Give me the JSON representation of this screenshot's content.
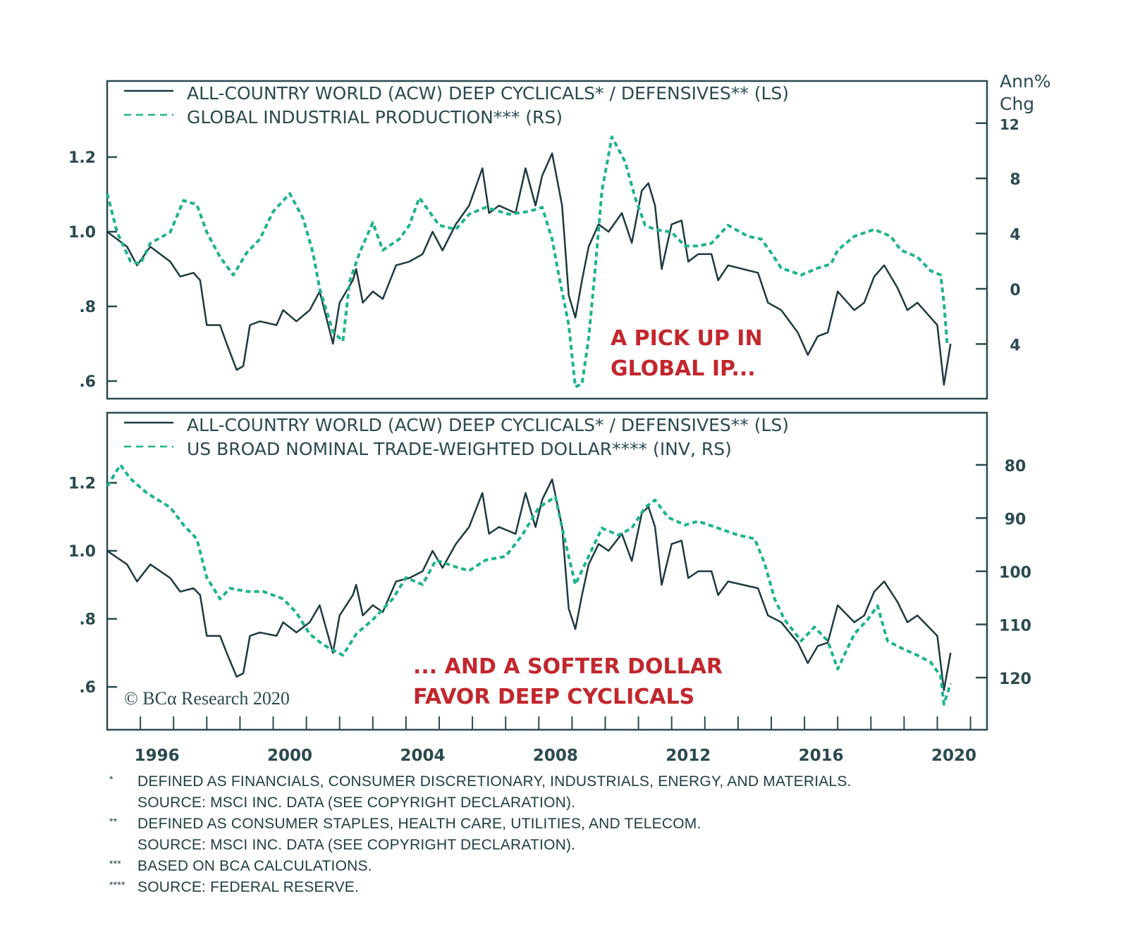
{
  "colors": {
    "ratio": "#1d3a3f",
    "green": "#1db38c",
    "annotation": "#c1272d",
    "axis": "#2a4a4f"
  },
  "copyright": "© BCα Research 2020",
  "chart_data": [
    {
      "type": "line",
      "legend": [
        "ALL-COUNTRY WORLD (ACW) DEEP CYCLICALS* / DEFENSIVES** (LS)",
        "GLOBAL INDUSTRIAL PRODUCTION*** (RS)"
      ],
      "legend_placement": "top-left",
      "right_axis_title": [
        "Ann%",
        "Chg"
      ],
      "annotation": [
        "A PICK UP IN",
        "GLOBAL IP..."
      ],
      "left_ticks": [
        {
          "v": 1.2,
          "label": "1.2"
        },
        {
          "v": 1.0,
          "label": "1.0"
        },
        {
          "v": 0.8,
          "label": ".8"
        },
        {
          "v": 0.6,
          "label": ".6"
        }
      ],
      "right_ticks": [
        {
          "v": 12,
          "label": "12"
        },
        {
          "v": 8,
          "label": "8"
        },
        {
          "v": 4,
          "label": "4"
        },
        {
          "v": 0,
          "label": "0"
        },
        {
          "v": -4,
          "label": "4"
        }
      ],
      "left_range": [
        0.55,
        1.4
      ],
      "right_range": [
        -8,
        15
      ],
      "series": [
        {
          "axis": "left",
          "style": "solid",
          "color": "#1d3a3f",
          "points": [
            [
              1995.0,
              1.0
            ],
            [
              1995.6,
              0.96
            ],
            [
              1995.9,
              0.91
            ],
            [
              1996.3,
              0.96
            ],
            [
              1996.9,
              0.92
            ],
            [
              1997.2,
              0.88
            ],
            [
              1997.6,
              0.89
            ],
            [
              1997.8,
              0.87
            ],
            [
              1998.0,
              0.75
            ],
            [
              1998.4,
              0.75
            ],
            [
              1998.6,
              0.7
            ],
            [
              1998.9,
              0.63
            ],
            [
              1999.1,
              0.64
            ],
            [
              1999.3,
              0.75
            ],
            [
              1999.6,
              0.76
            ],
            [
              2000.1,
              0.75
            ],
            [
              2000.3,
              0.79
            ],
            [
              2000.7,
              0.76
            ],
            [
              2001.1,
              0.79
            ],
            [
              2001.4,
              0.84
            ],
            [
              2001.8,
              0.7
            ],
            [
              2002.0,
              0.81
            ],
            [
              2002.4,
              0.87
            ],
            [
              2002.5,
              0.9
            ],
            [
              2002.7,
              0.81
            ],
            [
              2003.0,
              0.84
            ],
            [
              2003.3,
              0.82
            ],
            [
              2003.7,
              0.91
            ],
            [
              2004.1,
              0.92
            ],
            [
              2004.5,
              0.94
            ],
            [
              2004.8,
              1.0
            ],
            [
              2005.1,
              0.95
            ],
            [
              2005.5,
              1.02
            ],
            [
              2005.9,
              1.07
            ],
            [
              2006.3,
              1.17
            ],
            [
              2006.5,
              1.05
            ],
            [
              2006.8,
              1.07
            ],
            [
              2007.3,
              1.05
            ],
            [
              2007.6,
              1.17
            ],
            [
              2007.9,
              1.07
            ],
            [
              2008.1,
              1.15
            ],
            [
              2008.4,
              1.21
            ],
            [
              2008.7,
              1.07
            ],
            [
              2008.9,
              0.83
            ],
            [
              2009.1,
              0.77
            ],
            [
              2009.3,
              0.87
            ],
            [
              2009.5,
              0.96
            ],
            [
              2009.8,
              1.02
            ],
            [
              2010.1,
              1.0
            ],
            [
              2010.5,
              1.05
            ],
            [
              2010.8,
              0.97
            ],
            [
              2011.1,
              1.11
            ],
            [
              2011.3,
              1.13
            ],
            [
              2011.5,
              1.07
            ],
            [
              2011.7,
              0.9
            ],
            [
              2012.0,
              1.02
            ],
            [
              2012.3,
              1.03
            ],
            [
              2012.5,
              0.92
            ],
            [
              2012.8,
              0.94
            ],
            [
              2013.2,
              0.94
            ],
            [
              2013.4,
              0.87
            ],
            [
              2013.7,
              0.91
            ],
            [
              2014.6,
              0.89
            ],
            [
              2014.9,
              0.81
            ],
            [
              2015.3,
              0.79
            ],
            [
              2015.8,
              0.73
            ],
            [
              2016.1,
              0.67
            ],
            [
              2016.4,
              0.72
            ],
            [
              2016.7,
              0.73
            ],
            [
              2017.0,
              0.84
            ],
            [
              2017.5,
              0.79
            ],
            [
              2017.8,
              0.81
            ],
            [
              2018.1,
              0.88
            ],
            [
              2018.4,
              0.91
            ],
            [
              2018.8,
              0.85
            ],
            [
              2019.1,
              0.79
            ],
            [
              2019.4,
              0.81
            ],
            [
              2019.8,
              0.77
            ],
            [
              2020.0,
              0.75
            ],
            [
              2020.2,
              0.59
            ],
            [
              2020.4,
              0.7
            ]
          ]
        },
        {
          "axis": "right",
          "style": "dashed",
          "color": "#1db38c",
          "points": [
            [
              1995.0,
              6.9
            ],
            [
              1995.3,
              4.1
            ],
            [
              1995.7,
              2.0
            ],
            [
              1996.0,
              1.8
            ],
            [
              1996.3,
              3.3
            ],
            [
              1996.9,
              4.1
            ],
            [
              1997.3,
              6.4
            ],
            [
              1997.7,
              6.1
            ],
            [
              1998.0,
              4.1
            ],
            [
              1998.4,
              2.3
            ],
            [
              1998.8,
              1.0
            ],
            [
              1999.2,
              2.6
            ],
            [
              1999.6,
              3.6
            ],
            [
              2000.0,
              5.6
            ],
            [
              2000.5,
              6.9
            ],
            [
              2000.9,
              5.1
            ],
            [
              2001.2,
              2.6
            ],
            [
              2001.4,
              0
            ],
            [
              2001.8,
              -3.1
            ],
            [
              2002.1,
              -3.8
            ],
            [
              2002.3,
              0.5
            ],
            [
              2002.6,
              2.6
            ],
            [
              2003.0,
              4.8
            ],
            [
              2003.3,
              2.8
            ],
            [
              2003.8,
              3.6
            ],
            [
              2004.1,
              4.6
            ],
            [
              2004.4,
              6.6
            ],
            [
              2004.7,
              5.6
            ],
            [
              2005.0,
              4.6
            ],
            [
              2005.5,
              4.3
            ],
            [
              2005.9,
              5.4
            ],
            [
              2006.4,
              5.9
            ],
            [
              2007.1,
              5.4
            ],
            [
              2007.7,
              5.6
            ],
            [
              2008.1,
              5.9
            ],
            [
              2008.4,
              3.6
            ],
            [
              2008.6,
              1.0
            ],
            [
              2008.9,
              -2.6
            ],
            [
              2009.1,
              -7.1
            ],
            [
              2009.3,
              -6.9
            ],
            [
              2009.5,
              -3.6
            ],
            [
              2009.7,
              1.5
            ],
            [
              2009.9,
              7.1
            ],
            [
              2010.2,
              11.0
            ],
            [
              2010.6,
              9.2
            ],
            [
              2010.9,
              6.6
            ],
            [
              2011.2,
              4.6
            ],
            [
              2011.5,
              4.3
            ],
            [
              2012.0,
              4.1
            ],
            [
              2012.4,
              3.1
            ],
            [
              2012.8,
              3.1
            ],
            [
              2013.2,
              3.3
            ],
            [
              2013.7,
              4.6
            ],
            [
              2014.3,
              3.8
            ],
            [
              2014.7,
              3.6
            ],
            [
              2015.0,
              2.6
            ],
            [
              2015.3,
              1.5
            ],
            [
              2015.9,
              1.0
            ],
            [
              2016.4,
              1.5
            ],
            [
              2016.8,
              1.8
            ],
            [
              2017.0,
              2.8
            ],
            [
              2017.5,
              3.8
            ],
            [
              2018.1,
              4.3
            ],
            [
              2018.6,
              3.8
            ],
            [
              2018.9,
              2.8
            ],
            [
              2019.4,
              2.3
            ],
            [
              2019.8,
              1.3
            ],
            [
              2020.1,
              1.0
            ],
            [
              2020.2,
              -1.0
            ],
            [
              2020.3,
              -4.1
            ]
          ]
        }
      ]
    },
    {
      "type": "line",
      "legend": [
        "ALL-COUNTRY WORLD (ACW) DEEP CYCLICALS* / DEFENSIVES** (LS)",
        "US BROAD NOMINAL TRADE-WEIGHTED DOLLAR**** (INV, RS)"
      ],
      "legend_placement": "top-left",
      "annotation": [
        "... AND A SOFTER DOLLAR",
        "FAVOR DEEP CYCLICALS"
      ],
      "left_ticks": [
        {
          "v": 1.2,
          "label": "1.2"
        },
        {
          "v": 1.0,
          "label": "1.0"
        },
        {
          "v": 0.8,
          "label": ".8"
        },
        {
          "v": 0.6,
          "label": ".6"
        }
      ],
      "right_ticks": [
        {
          "v": 80,
          "label": "80"
        },
        {
          "v": 90,
          "label": "90"
        },
        {
          "v": 100,
          "label": "100"
        },
        {
          "v": 110,
          "label": "110"
        },
        {
          "v": 120,
          "label": "120"
        }
      ],
      "right_inverted": true,
      "x_ticks": [
        "1996",
        "2000",
        "2004",
        "2008",
        "2012",
        "2016",
        "2020"
      ],
      "x_range": [
        1995,
        2021.5
      ],
      "series": [
        {
          "axis": "left",
          "style": "solid",
          "color": "#1d3a3f",
          "same_as": "ratio"
        },
        {
          "axis": "right",
          "style": "dashed",
          "color": "#1db38c",
          "points": [
            [
              1995.0,
              84
            ],
            [
              1995.4,
              80
            ],
            [
              1995.7,
              82.6
            ],
            [
              1996.2,
              85.3
            ],
            [
              1996.9,
              88
            ],
            [
              1997.3,
              91.3
            ],
            [
              1997.7,
              93.9
            ],
            [
              1998.0,
              101.2
            ],
            [
              1998.4,
              105.2
            ],
            [
              1998.7,
              103.2
            ],
            [
              1999.2,
              103.8
            ],
            [
              1999.7,
              103.8
            ],
            [
              2000.3,
              105.2
            ],
            [
              2000.7,
              107.8
            ],
            [
              2001.1,
              111.8
            ],
            [
              2001.5,
              113.8
            ],
            [
              2002.1,
              115.8
            ],
            [
              2002.5,
              111.8
            ],
            [
              2003.0,
              109.1
            ],
            [
              2003.6,
              105.2
            ],
            [
              2004.0,
              101.2
            ],
            [
              2004.5,
              102.5
            ],
            [
              2004.9,
              97.9
            ],
            [
              2005.5,
              99.2
            ],
            [
              2005.9,
              99.9
            ],
            [
              2006.4,
              97.9
            ],
            [
              2007.0,
              97.2
            ],
            [
              2007.5,
              93.2
            ],
            [
              2008.0,
              88
            ],
            [
              2008.5,
              86
            ],
            [
              2008.8,
              94.6
            ],
            [
              2009.1,
              102.5
            ],
            [
              2009.5,
              97.2
            ],
            [
              2009.9,
              91.9
            ],
            [
              2010.4,
              93.2
            ],
            [
              2010.8,
              91.9
            ],
            [
              2011.2,
              88
            ],
            [
              2011.5,
              86.6
            ],
            [
              2011.9,
              89.9
            ],
            [
              2012.4,
              91.3
            ],
            [
              2012.8,
              90.6
            ],
            [
              2013.4,
              91.9
            ],
            [
              2014.0,
              93.2
            ],
            [
              2014.5,
              93.9
            ],
            [
              2014.8,
              98.5
            ],
            [
              2015.1,
              105.2
            ],
            [
              2015.4,
              109.1
            ],
            [
              2015.9,
              113.1
            ],
            [
              2016.3,
              110.5
            ],
            [
              2016.7,
              113.1
            ],
            [
              2017.0,
              118.4
            ],
            [
              2017.5,
              111.8
            ],
            [
              2017.9,
              109.1
            ],
            [
              2018.2,
              106.5
            ],
            [
              2018.5,
              113.1
            ],
            [
              2018.9,
              114.4
            ],
            [
              2019.4,
              115.8
            ],
            [
              2019.8,
              117.1
            ],
            [
              2020.1,
              119.7
            ],
            [
              2020.2,
              125
            ],
            [
              2020.4,
              121.1
            ]
          ]
        }
      ]
    }
  ],
  "footnotes": [
    {
      "mark": "*",
      "lines": [
        "DEFINED AS FINANCIALS, CONSUMER DISCRETIONARY, INDUSTRIALS, ENERGY, AND MATERIALS.",
        "SOURCE: MSCI INC. DATA (SEE COPYRIGHT DECLARATION)."
      ]
    },
    {
      "mark": "**",
      "lines": [
        "DEFINED AS CONSUMER STAPLES, HEALTH CARE, UTILITIES, AND TELECOM.",
        "SOURCE: MSCI INC. DATA (SEE COPYRIGHT DECLARATION)."
      ]
    },
    {
      "mark": "***",
      "lines": [
        "BASED ON BCA CALCULATIONS."
      ]
    },
    {
      "mark": "****",
      "lines": [
        "SOURCE: FEDERAL RESERVE."
      ]
    }
  ]
}
